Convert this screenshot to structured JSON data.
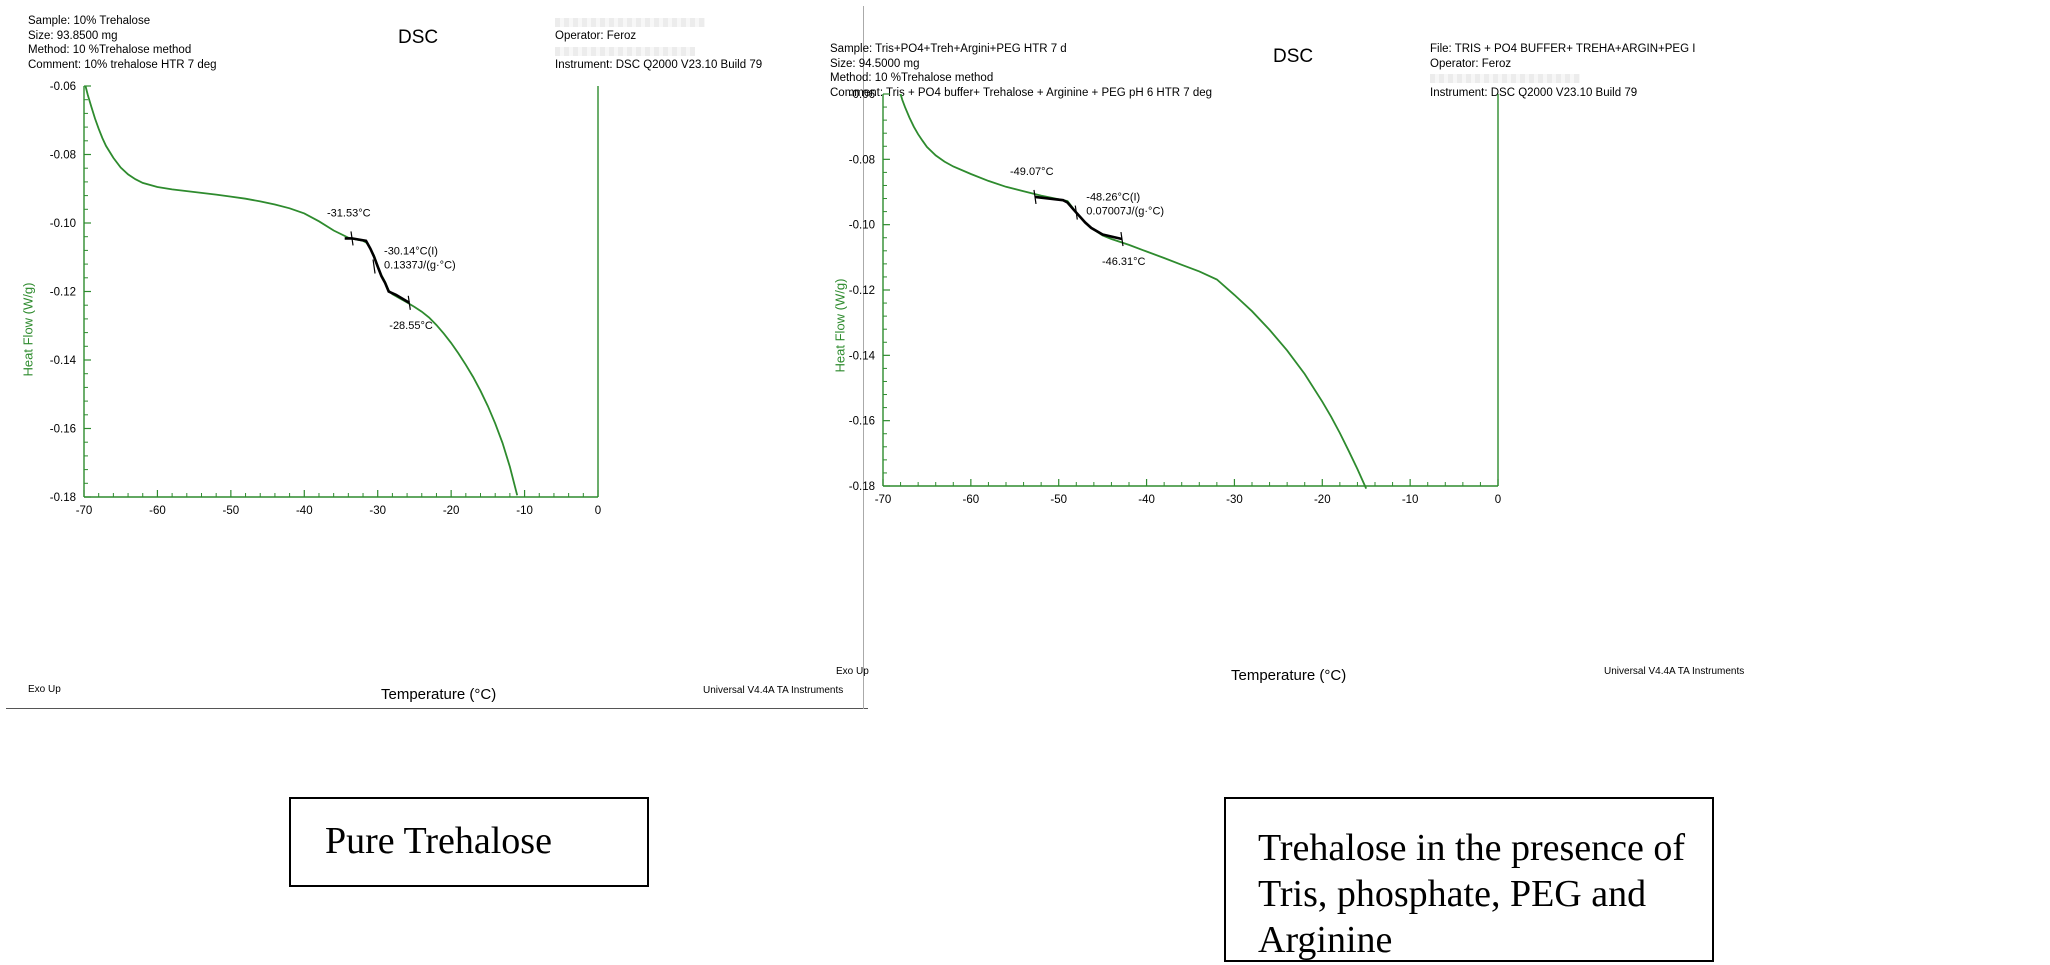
{
  "panels": [
    {
      "header_left": [
        "Sample: 10% Trehalose",
        "Size: 93.8500 mg",
        "Method: 10 %Trehalose method",
        "Comment: 10% trehalose HTR 7 deg"
      ],
      "title": "DSC",
      "header_right": [
        "",
        "Operator: Feroz",
        "",
        "Instrument: DSC Q2000 V23.10 Build 79"
      ],
      "exo": "Exo Up",
      "footer": "Universal V4.4A TA Instruments",
      "caption": "Pure Trehalose"
    },
    {
      "header_left": [
        "Sample: Tris+PO4+Treh+Argini+PEG HTR 7 d",
        "Size: 94.5000 mg",
        "Method: 10 %Trehalose method",
        "Comment: Tris + PO4 buffer+ Trehalose + Arginine + PEG pH 6 HTR 7 deg"
      ],
      "title": "DSC",
      "header_right": [
        "File: TRIS + PO4 BUFFER+ TREHA+ARGIN+PEG I",
        "Operator: Feroz",
        "",
        "Instrument: DSC Q2000 V23.10 Build 79"
      ],
      "exo": "Exo Up",
      "footer": "Universal V4.4A TA Instruments",
      "caption": "Trehalose in the presence of Tris, phosphate, PEG and Arginine"
    }
  ],
  "colors": {
    "curve": "#2e8b2e",
    "axis": "#2e8b2e",
    "annotation": "#000000",
    "text": "#000000"
  },
  "chart_data": [
    {
      "type": "line",
      "title": "DSC",
      "xlabel": "Temperature (°C)",
      "ylabel": "Heat Flow (W/g)",
      "xlim": [
        -70,
        0
      ],
      "ylim": [
        -0.18,
        -0.06
      ],
      "xticks": [
        -70,
        -60,
        -50,
        -40,
        -30,
        -20,
        -10,
        0
      ],
      "yticks": [
        -0.06,
        -0.08,
        -0.1,
        -0.12,
        -0.14,
        -0.16,
        -0.18
      ],
      "xtick_labels": [
        "-70",
        "-60",
        "-50",
        "-40",
        "-30",
        "-20",
        "-10",
        "0"
      ],
      "ytick_labels": [
        "-0.06",
        "-0.08",
        "-0.10",
        "-0.12",
        "-0.14",
        "-0.16",
        "-0.18"
      ],
      "grid": false,
      "series": [
        {
          "x": [
            -69.8,
            -69.5,
            -69,
            -68.5,
            -68,
            -67.5,
            -67,
            -66,
            -65,
            -64,
            -63,
            -62,
            -60,
            -58,
            -56,
            -54,
            -52,
            -50,
            -48,
            -46,
            -44,
            -42,
            -40,
            -38,
            -36,
            -34,
            -33,
            -32,
            -31.5,
            -31,
            -30.5,
            -30,
            -29.5,
            -29,
            -28.5,
            -28,
            -27,
            -26,
            -25,
            -24,
            -23,
            -22,
            -21,
            -20,
            -19,
            -18,
            -17,
            -16,
            -15,
            -14,
            -13,
            -12,
            -11
          ],
          "y": [
            -0.06,
            -0.0625,
            -0.066,
            -0.0695,
            -0.0725,
            -0.0752,
            -0.0775,
            -0.081,
            -0.0838,
            -0.0858,
            -0.0872,
            -0.0883,
            -0.0895,
            -0.0902,
            -0.0907,
            -0.0912,
            -0.0917,
            -0.0923,
            -0.0929,
            -0.0937,
            -0.0946,
            -0.0957,
            -0.0972,
            -0.0995,
            -0.1022,
            -0.1043,
            -0.1048,
            -0.1052,
            -0.1058,
            -0.1075,
            -0.1095,
            -0.1125,
            -0.1152,
            -0.1172,
            -0.1197,
            -0.1208,
            -0.122,
            -0.1232,
            -0.1245,
            -0.1259,
            -0.1276,
            -0.1298,
            -0.1323,
            -0.135,
            -0.1381,
            -0.1414,
            -0.145,
            -0.149,
            -0.1535,
            -0.1585,
            -0.1642,
            -0.1712,
            -0.1795
          ]
        }
      ],
      "annotations": {
        "onset": {
          "label": "-31.53°C",
          "x": -33.5,
          "y": -0.1045
        },
        "midpoint": {
          "label": "-30.14°C(I)",
          "label2": "0.1337J/(g·°C)",
          "x": -30.5,
          "y": -0.1127
        },
        "end": {
          "label": "-28.55°C",
          "x": -25.7,
          "y": -0.1233
        },
        "segment": {
          "x": [
            -34.5,
            -33.5,
            -31.6,
            -31.0,
            -30.5,
            -30.0,
            -29.5,
            -29.0,
            -28.5,
            -27.5,
            -25.7
          ],
          "y": [
            -0.1045,
            -0.1045,
            -0.1052,
            -0.1075,
            -0.1098,
            -0.1127,
            -0.1155,
            -0.1175,
            -0.12,
            -0.121,
            -0.1233
          ]
        }
      }
    },
    {
      "type": "line",
      "title": "DSC",
      "xlabel": "Temperature (°C)",
      "ylabel": "Heat Flow (W/g)",
      "xlim": [
        -70,
        0
      ],
      "ylim": [
        -0.18,
        -0.06
      ],
      "xticks": [
        -70,
        -60,
        -50,
        -40,
        -30,
        -20,
        -10,
        0
      ],
      "yticks": [
        -0.06,
        -0.08,
        -0.1,
        -0.12,
        -0.14,
        -0.16,
        -0.18
      ],
      "xtick_labels": [
        "-70",
        "-60",
        "-50",
        "-40",
        "-30",
        "-20",
        "-10",
        "0"
      ],
      "ytick_labels": [
        "-0.06",
        "-0.08",
        "-0.10",
        "-0.12",
        "-0.14",
        "-0.16",
        "-0.18"
      ],
      "grid": false,
      "series": [
        {
          "x": [
            -68,
            -67.8,
            -67.5,
            -67,
            -66.5,
            -66,
            -65.5,
            -65,
            -64,
            -63,
            -62,
            -60,
            -58,
            -56,
            -54,
            -52,
            -50,
            -49,
            -48.5,
            -48,
            -47.5,
            -47,
            -46.5,
            -46,
            -45,
            -44,
            -42,
            -40,
            -38,
            -36,
            -34,
            -32,
            -30,
            -28,
            -26,
            -24,
            -22,
            -20,
            -19,
            -18,
            -17,
            -16,
            -15
          ],
          "y": [
            -0.06,
            -0.0618,
            -0.064,
            -0.0672,
            -0.07,
            -0.0723,
            -0.0743,
            -0.0762,
            -0.0788,
            -0.0807,
            -0.0822,
            -0.0845,
            -0.0866,
            -0.0884,
            -0.0898,
            -0.0911,
            -0.0922,
            -0.0928,
            -0.0945,
            -0.0963,
            -0.0978,
            -0.0993,
            -0.1005,
            -0.1015,
            -0.1033,
            -0.1044,
            -0.1062,
            -0.1082,
            -0.1102,
            -0.1123,
            -0.1143,
            -0.1168,
            -0.1215,
            -0.1265,
            -0.1322,
            -0.1385,
            -0.1457,
            -0.1542,
            -0.1588,
            -0.1638,
            -0.1692,
            -0.1748,
            -0.1808
          ]
        }
      ],
      "annotations": {
        "onset": {
          "label": "-49.07°C",
          "x": -52.7,
          "y": -0.0915
        },
        "midpoint": {
          "label": "-48.26°C(I)",
          "label2": "0.07007J/(g·°C)",
          "x": -48.0,
          "y": -0.0963
        },
        "end": {
          "label": "-46.31°C",
          "x": -42.8,
          "y": -0.1044
        },
        "segment": {
          "x": [
            -52.7,
            -49.5,
            -49.0,
            -48.5,
            -48.0,
            -47.5,
            -47.0,
            -46.3,
            -45.0,
            -42.8
          ],
          "y": [
            -0.0915,
            -0.0925,
            -0.0932,
            -0.0948,
            -0.0963,
            -0.0978,
            -0.0993,
            -0.101,
            -0.103,
            -0.1044
          ]
        }
      }
    }
  ]
}
